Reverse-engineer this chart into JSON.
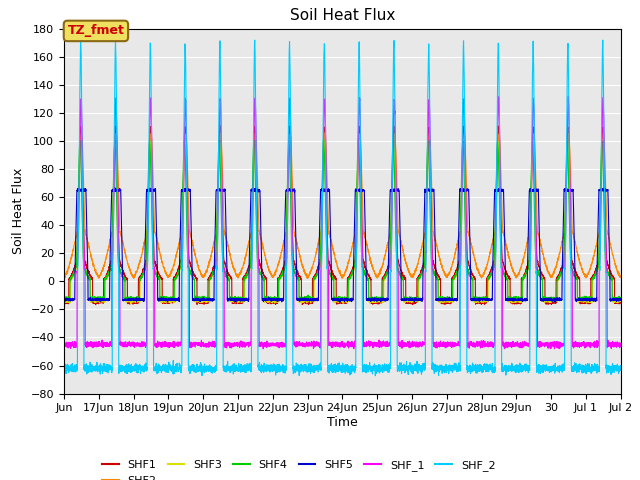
{
  "title": "Soil Heat Flux",
  "xlabel": "Time",
  "ylabel": "Soil Heat Flux",
  "ylim": [
    -80,
    180
  ],
  "annotation_text": "TZ_fmet",
  "annotation_bg": "#f0e060",
  "annotation_border": "#8b6914",
  "annotation_text_color": "#cc0000",
  "series_colors": {
    "SHF1": "#cc0000",
    "SHF2": "#ff8800",
    "SHF3": "#dddd00",
    "SHF4": "#00cc00",
    "SHF5": "#0000cc",
    "SHF_1": "#ff00ff",
    "SHF_2": "#00ccff"
  },
  "background_color": "#e8e8e8",
  "fig_bg": "#ffffff",
  "grid_color": "#ffffff",
  "tick_labels": [
    "Jun",
    "17Jun",
    "18Jun",
    "19Jun",
    "20Jun",
    "21Jun",
    "22Jun",
    "23Jun",
    "24Jun",
    "25Jun",
    "26Jun",
    "27Jun",
    "28Jun",
    "29Jun",
    "30",
    "Jul 1",
    "Jul 2"
  ],
  "tick_positions": [
    16.0,
    17.0,
    18.0,
    19.0,
    20.0,
    21.0,
    22.0,
    23.0,
    24.0,
    25.0,
    26.0,
    27.0,
    28.0,
    29.0,
    30.0,
    31.0,
    32.0
  ]
}
